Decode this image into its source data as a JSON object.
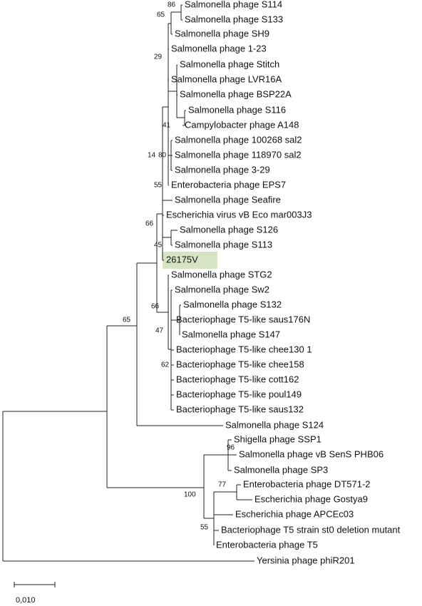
{
  "leaves": [
    "Salmonella phage S114",
    "Salmonella phage S133",
    "Salmonella phage SH9",
    "Salmonella phage 1-23",
    "Salmonella phage Stitch",
    "Salmonella phage LVR16A",
    "Salmonella phage BSP22A",
    "Salmonella phage S116",
    "Campylobacter phage A148",
    "Salmonella phage 100268 sal2",
    "Salmonella phage 118970 sal2",
    "Salmonella phage 3-29",
    "Enterobacteria phage EPS7",
    "Salmonella phage Seafire",
    "Escherichia virus vB Eco mar003J3",
    "Salmonella phage S126",
    "Salmonella phage S113",
    "26175V",
    "Salmonella phage STG2",
    "Salmonella phage Sw2",
    "Salmonella phage S132",
    "Bacteriophage T5-like saus176N",
    "Salmonella phage S147",
    "Bacteriophage T5-like chee130 1",
    "Bacteriophage T5-like chee158",
    "Bacteriophage T5-like cott162",
    "Bacteriophage T5-like poul149",
    "Bacteriophage T5-like saus132",
    "Salmonella phage S124",
    "Shigella phage SSP1",
    "Salmonella phage vB SenS PHB06",
    "Salmonella phage SP3",
    "Enterobacteria phage DT571-2",
    "Escherichia phage Gostya9",
    "Escherichia phage APCEc03",
    "Bacteriophage T5 strain st0 deletion mutant",
    "Enterobacteria phage T5",
    "Yersinia phage phiR201"
  ],
  "bootstrap": [
    86,
    65,
    29,
    41,
    14,
    80,
    55,
    45,
    66,
    66,
    47,
    62,
    65,
    96,
    77,
    100,
    55
  ],
  "scale_bar": "0,010"
}
